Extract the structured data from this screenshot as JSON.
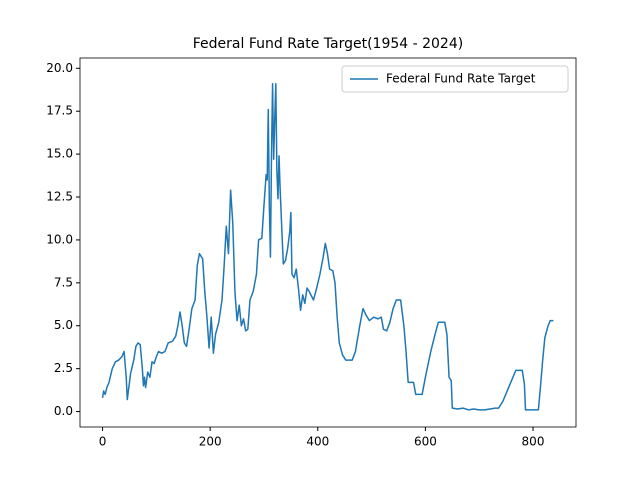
{
  "chart_data": {
    "type": "line",
    "title": "Federal Fund Rate Target(1954 - 2024)",
    "x": [
      0,
      2,
      5,
      8,
      12,
      18,
      24,
      30,
      36,
      40,
      44,
      46,
      48,
      52,
      58,
      62,
      66,
      70,
      74,
      76,
      78,
      80,
      84,
      88,
      92,
      96,
      100,
      104,
      110,
      116,
      122,
      130,
      136,
      140,
      144,
      148,
      152,
      156,
      160,
      166,
      172,
      176,
      180,
      186,
      190,
      194,
      198,
      202,
      206,
      210,
      216,
      222,
      226,
      230,
      234,
      238,
      242,
      246,
      250,
      254,
      258,
      262,
      266,
      270,
      274,
      280,
      286,
      290,
      296,
      300,
      304,
      306,
      308,
      310,
      312,
      314,
      316,
      318,
      320,
      322,
      324,
      326,
      328,
      330,
      334,
      336,
      340,
      344,
      348,
      350,
      352,
      356,
      360,
      364,
      368,
      372,
      376,
      380,
      384,
      392,
      398,
      404,
      410,
      414,
      418,
      422,
      428,
      432,
      436,
      440,
      446,
      452,
      464,
      470,
      478,
      484,
      490,
      496,
      504,
      512,
      518,
      522,
      528,
      534,
      540,
      546,
      554,
      560,
      564,
      568,
      578,
      582,
      594,
      600,
      610,
      618,
      624,
      636,
      640,
      644,
      648,
      650,
      660,
      670,
      680,
      690,
      700,
      710,
      720,
      730,
      736,
      744,
      752,
      760,
      768,
      780,
      784,
      786,
      796,
      810,
      814,
      818,
      822,
      828,
      832,
      838
    ],
    "series": [
      {
        "name": "Federal Fund Rate Target",
        "color": "#1f77b4",
        "values": [
          0.8,
          1.2,
          1.0,
          1.4,
          1.7,
          2.5,
          2.9,
          3.0,
          3.2,
          3.5,
          2.0,
          0.7,
          1.2,
          2.2,
          3.0,
          3.8,
          4.0,
          3.9,
          2.5,
          1.5,
          2.0,
          1.4,
          2.3,
          2.0,
          2.9,
          2.8,
          3.2,
          3.5,
          3.4,
          3.5,
          4.0,
          4.1,
          4.4,
          5.0,
          5.8,
          5.0,
          4.0,
          3.8,
          4.6,
          6.0,
          6.5,
          8.5,
          9.2,
          8.9,
          7.0,
          5.5,
          3.7,
          5.5,
          3.4,
          4.5,
          5.2,
          6.5,
          8.5,
          10.8,
          9.2,
          12.9,
          11.0,
          7.0,
          5.3,
          6.2,
          5.0,
          5.4,
          4.7,
          4.8,
          6.5,
          7.0,
          8.0,
          10.0,
          10.1,
          12.0,
          13.8,
          13.5,
          17.6,
          12.0,
          9.0,
          15.0,
          19.1,
          14.7,
          17.0,
          19.1,
          14.0,
          12.4,
          14.9,
          13.0,
          10.0,
          8.6,
          8.8,
          9.5,
          10.5,
          11.6,
          8.0,
          7.8,
          8.3,
          7.2,
          5.9,
          6.8,
          6.3,
          7.2,
          7.0,
          6.5,
          7.2,
          8.0,
          9.0,
          9.8,
          9.2,
          8.3,
          8.2,
          7.5,
          5.5,
          4.0,
          3.3,
          3.0,
          3.0,
          3.5,
          5.0,
          6.0,
          5.6,
          5.3,
          5.5,
          5.4,
          5.5,
          4.8,
          4.7,
          5.2,
          6.0,
          6.5,
          6.5,
          5.0,
          3.5,
          1.7,
          1.7,
          1.0,
          1.0,
          2.0,
          3.5,
          4.5,
          5.2,
          5.2,
          4.5,
          2.0,
          1.8,
          0.2,
          0.15,
          0.2,
          0.1,
          0.15,
          0.1,
          0.1,
          0.15,
          0.2,
          0.2,
          0.6,
          1.2,
          1.8,
          2.4,
          2.4,
          1.6,
          0.1,
          0.1,
          0.1,
          1.5,
          3.0,
          4.3,
          5.0,
          5.3,
          5.3
        ]
      }
    ],
    "xlim": [
      -41.9,
      879.9
    ],
    "xticks": [
      0,
      200,
      400,
      600,
      800
    ],
    "ylim": [
      -0.9,
      20.6
    ],
    "yticks": [
      {
        "value": 0,
        "label": "0.0"
      },
      2.5,
      {
        "value": 5,
        "label": "5.0"
      },
      7.5,
      {
        "value": 10,
        "label": "10.0"
      },
      12.5,
      {
        "value": 15,
        "label": "15.0"
      },
      17.5,
      {
        "value": 20,
        "label": "20.0"
      }
    ],
    "grid": false,
    "legend": "upper right"
  }
}
